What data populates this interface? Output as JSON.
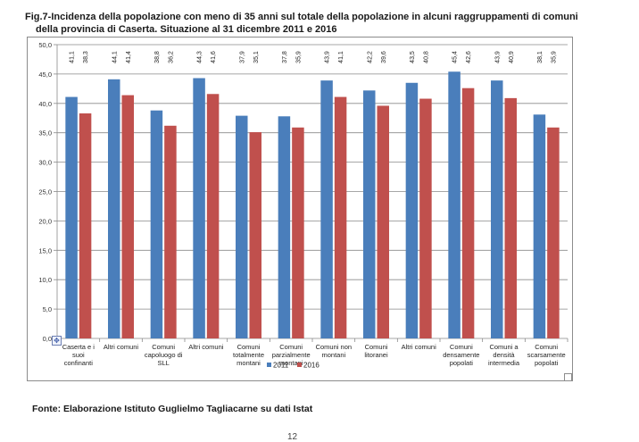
{
  "title_line1": "Fig.7-Incidenza della popolazione con meno di 35 anni sul totale della popolazione in alcuni raggruppamenti di comuni",
  "title_line2": "della provincia di Caserta. Situazione al 31 dicembre 2011 e 2016",
  "source": "Fonte: Elaborazione Istituto Guglielmo Tagliacarne su dati Istat",
  "page_number": "12",
  "chart_data": {
    "type": "bar",
    "categories": [
      [
        "Caserta e i",
        "suoi",
        "confinanti"
      ],
      [
        "Altri comuni"
      ],
      [
        "Comuni",
        "capoluogo di",
        "SLL"
      ],
      [
        "Altri comuni"
      ],
      [
        "Comuni",
        "totalmente",
        "montani"
      ],
      [
        "Comuni",
        "parzialmente",
        "montani"
      ],
      [
        "Comuni non",
        "montani"
      ],
      [
        "Comuni",
        "litoranei"
      ],
      [
        "Altri comuni"
      ],
      [
        "Comuni",
        "densamente",
        "popolati"
      ],
      [
        "Comuni a",
        "densità",
        "intermedia"
      ],
      [
        "Comuni",
        "scarsamente",
        "popolati"
      ]
    ],
    "series": [
      {
        "name": "2011",
        "color": "#4a7ebb",
        "values": [
          41.1,
          44.1,
          38.8,
          44.3,
          37.9,
          37.8,
          43.9,
          42.2,
          43.5,
          45.4,
          43.9,
          38.1
        ],
        "labels": [
          "41,1",
          "44,1",
          "38,8",
          "44,3",
          "37,9",
          "37,8",
          "43,9",
          "42,2",
          "43,5",
          "45,4",
          "43,9",
          "38,1"
        ]
      },
      {
        "name": "2016",
        "color": "#c0504d",
        "values": [
          38.3,
          41.4,
          36.2,
          41.6,
          35.1,
          35.9,
          41.1,
          39.6,
          40.8,
          42.6,
          40.9,
          35.9
        ],
        "labels": [
          "38,3",
          "41,4",
          "36,2",
          "41,6",
          "35,1",
          "35,9",
          "41,1",
          "39,6",
          "40,8",
          "42,6",
          "40,9",
          "35,9"
        ]
      }
    ],
    "ylim": [
      0,
      50
    ],
    "yticks": [
      "0,0",
      "5,0",
      "10,0",
      "15,0",
      "20,0",
      "25,0",
      "30,0",
      "35,0",
      "40,0",
      "45,0",
      "50,0"
    ],
    "gridlines": true,
    "legend_position": "bottom"
  }
}
